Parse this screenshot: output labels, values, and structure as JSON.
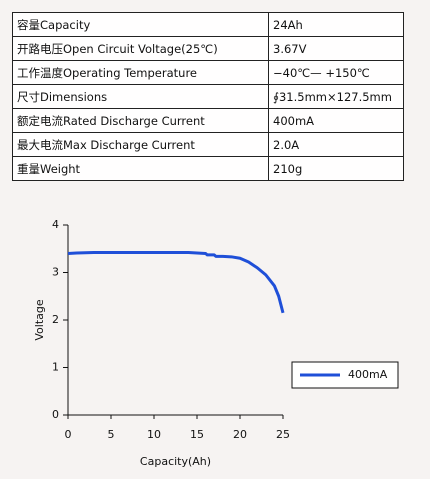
{
  "table": {
    "rows": [
      [
        "容量Capacity",
        "24Ah"
      ],
      [
        "开路电压Open Circuit Voltage(25℃)",
        "3.67V"
      ],
      [
        "工作温度Operating Temperature",
        "−40℃— +150℃"
      ],
      [
        "尺寸Dimensions",
        "∮31.5mm×127.5mm"
      ],
      [
        "额定电流Rated Discharge Current",
        "400mA"
      ],
      [
        "最大电流Max Discharge Current",
        "2.0A"
      ],
      [
        "重量Weight",
        "210g"
      ]
    ]
  },
  "chart_data": {
    "type": "line",
    "xlabel": "Capacity(Ah)",
    "ylabel": "Voltage",
    "x": [
      0,
      1,
      3,
      5,
      8,
      10,
      12,
      14,
      15,
      16,
      16.2,
      17,
      17.2,
      18,
      19,
      20,
      21,
      22,
      23,
      24,
      24.5,
      25
    ],
    "series": [
      {
        "name": "400mA",
        "color": "#1f4fd8",
        "values": [
          3.4,
          3.41,
          3.42,
          3.42,
          3.42,
          3.42,
          3.42,
          3.42,
          3.41,
          3.4,
          3.37,
          3.37,
          3.34,
          3.34,
          3.33,
          3.3,
          3.22,
          3.1,
          2.95,
          2.72,
          2.5,
          2.15
        ]
      }
    ],
    "xlim": [
      0,
      25
    ],
    "xticks": [
      0,
      5,
      10,
      15,
      20,
      25
    ],
    "ylim": [
      0,
      4
    ],
    "yticks": [
      0,
      1,
      2,
      3,
      4
    ],
    "legend": "lower right"
  }
}
